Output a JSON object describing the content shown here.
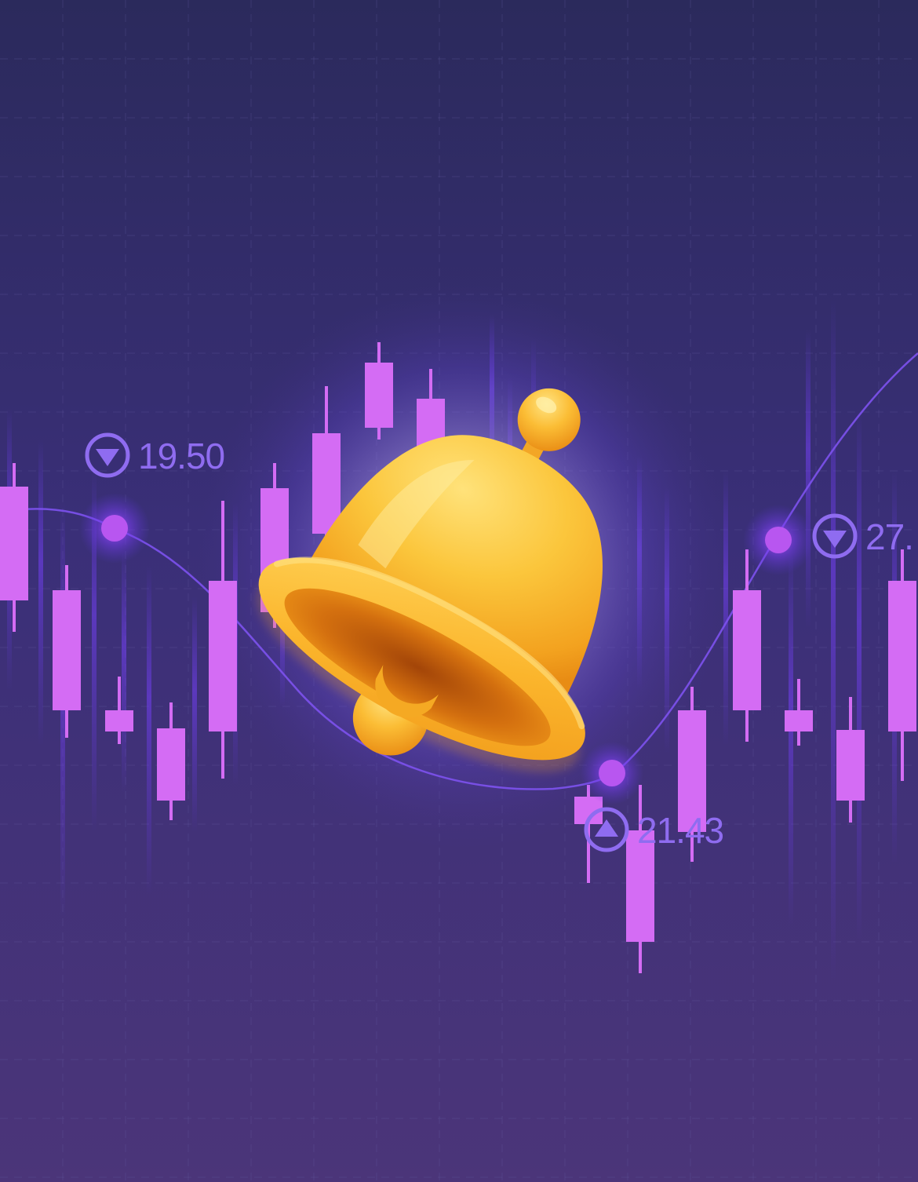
{
  "colors": {
    "bg_top": "#2b2a5c",
    "bg_mid": "#3d2f78",
    "bg_bottom": "#4a3478",
    "candle": "#d46cf4",
    "glow": "#7b3cf6",
    "bell": "#f8b830",
    "indicator": "#8f6cf0"
  },
  "markers": [
    {
      "value": "19.50",
      "direction": "down",
      "icon": "down-triangle-icon"
    },
    {
      "value": "27.",
      "direction": "down",
      "icon": "down-triangle-icon"
    },
    {
      "value": "21.43",
      "direction": "up",
      "icon": "up-triangle-icon"
    }
  ],
  "bell": {
    "icon": "notification-bell-icon"
  }
}
